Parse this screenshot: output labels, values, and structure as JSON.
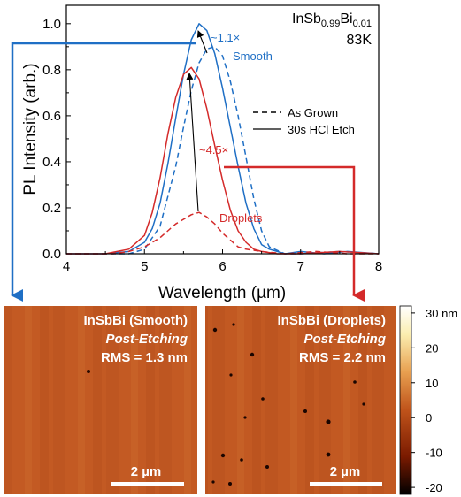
{
  "chart_data": {
    "type": "line",
    "title": "",
    "xlabel": "Wavelength (µm)",
    "ylabel": "PL Intensity (arb.)",
    "xlim": [
      4,
      8
    ],
    "ylim": [
      0,
      1.08
    ],
    "xticks": [
      "4",
      "5",
      "6",
      "7",
      "8"
    ],
    "yticks": [
      "0.0",
      "0.2",
      "0.4",
      "0.6",
      "0.8",
      "1.0"
    ],
    "sample_label": {
      "base": "InSb",
      "sub1": "0.99",
      "mid": "Bi",
      "sub2": "0.01"
    },
    "temperature": "83K",
    "legend": [
      {
        "label": "As Grown",
        "style": "dashed"
      },
      {
        "label": "30s HCl Etch",
        "style": "solid"
      }
    ],
    "annotations": {
      "smooth_ratio": "~1.1×",
      "smooth_label": "Smooth",
      "droplet_ratio": "~4.5×",
      "droplet_label": "Droplets"
    },
    "colors": {
      "smooth": "#1f6fc5",
      "droplets": "#d42a2a",
      "etched_black": "#000000"
    },
    "series": [
      {
        "name": "Smooth",
        "style": "solid",
        "color": "#1f6fc5",
        "x": [
          4.0,
          4.5,
          4.8,
          5.0,
          5.1,
          5.2,
          5.3,
          5.4,
          5.5,
          5.6,
          5.7,
          5.8,
          5.9,
          6.0,
          6.1,
          6.2,
          6.3,
          6.4,
          6.5,
          6.6,
          6.7,
          6.8,
          7.0,
          7.3,
          7.6,
          8.0
        ],
        "y": [
          0.0,
          0.0,
          0.01,
          0.05,
          0.11,
          0.22,
          0.39,
          0.59,
          0.78,
          0.93,
          1.0,
          0.97,
          0.87,
          0.72,
          0.55,
          0.38,
          0.22,
          0.11,
          0.04,
          0.02,
          0.01,
          0.0,
          0.01,
          0.0,
          0.01,
          0.0
        ]
      },
      {
        "name": "Smooth",
        "style": "dashed",
        "color": "#1f6fc5",
        "x": [
          4.0,
          4.8,
          5.0,
          5.2,
          5.4,
          5.5,
          5.6,
          5.7,
          5.8,
          5.9,
          6.0,
          6.1,
          6.2,
          6.3,
          6.4,
          6.5,
          6.6,
          6.8,
          7.0,
          7.5,
          8.0
        ],
        "y": [
          0.0,
          0.0,
          0.02,
          0.12,
          0.38,
          0.55,
          0.71,
          0.83,
          0.89,
          0.9,
          0.86,
          0.75,
          0.6,
          0.42,
          0.24,
          0.1,
          0.03,
          0.0,
          0.0,
          0.01,
          0.0
        ]
      },
      {
        "name": "Droplets",
        "style": "solid",
        "color": "#d42a2a",
        "x": [
          4.0,
          4.5,
          4.8,
          5.0,
          5.1,
          5.2,
          5.3,
          5.4,
          5.5,
          5.6,
          5.7,
          5.8,
          5.9,
          6.0,
          6.1,
          6.2,
          6.3,
          6.4,
          6.5,
          6.7,
          7.0,
          7.5,
          8.0
        ],
        "y": [
          0.0,
          0.0,
          0.02,
          0.08,
          0.18,
          0.33,
          0.52,
          0.68,
          0.78,
          0.81,
          0.76,
          0.63,
          0.47,
          0.32,
          0.19,
          0.1,
          0.05,
          0.02,
          0.01,
          0.0,
          0.0,
          0.01,
          0.0
        ]
      },
      {
        "name": "Droplets",
        "style": "dashed",
        "color": "#d42a2a",
        "x": [
          4.0,
          4.6,
          4.8,
          5.0,
          5.2,
          5.3,
          5.4,
          5.5,
          5.6,
          5.7,
          5.8,
          5.9,
          6.0,
          6.1,
          6.2,
          6.3,
          6.5,
          6.8,
          7.2,
          7.6,
          8.0
        ],
        "y": [
          0.0,
          0.0,
          0.01,
          0.03,
          0.07,
          0.1,
          0.13,
          0.15,
          0.17,
          0.18,
          0.16,
          0.13,
          0.09,
          0.06,
          0.03,
          0.02,
          0.01,
          0.0,
          0.01,
          0.0,
          0.0
        ]
      }
    ]
  },
  "afm_panels": [
    {
      "title": "InSbBi (Smooth)",
      "subtitle": "Post-Etching",
      "rms": "RMS = 1.3 nm",
      "scale_bar": "2 µm"
    },
    {
      "title": "InSbBi (Droplets)",
      "subtitle": "Post-Etching",
      "rms": "RMS = 2.2 nm",
      "scale_bar": "2 µm"
    }
  ],
  "colorbar": {
    "ticks": [
      "30 nm",
      "20",
      "10",
      "0",
      "-10",
      "-20"
    ],
    "range": [
      -22,
      32
    ],
    "colors": [
      "#000000",
      "#7a1a00",
      "#c0541b",
      "#e8a050",
      "#fbeeb0",
      "#ffffff"
    ]
  }
}
